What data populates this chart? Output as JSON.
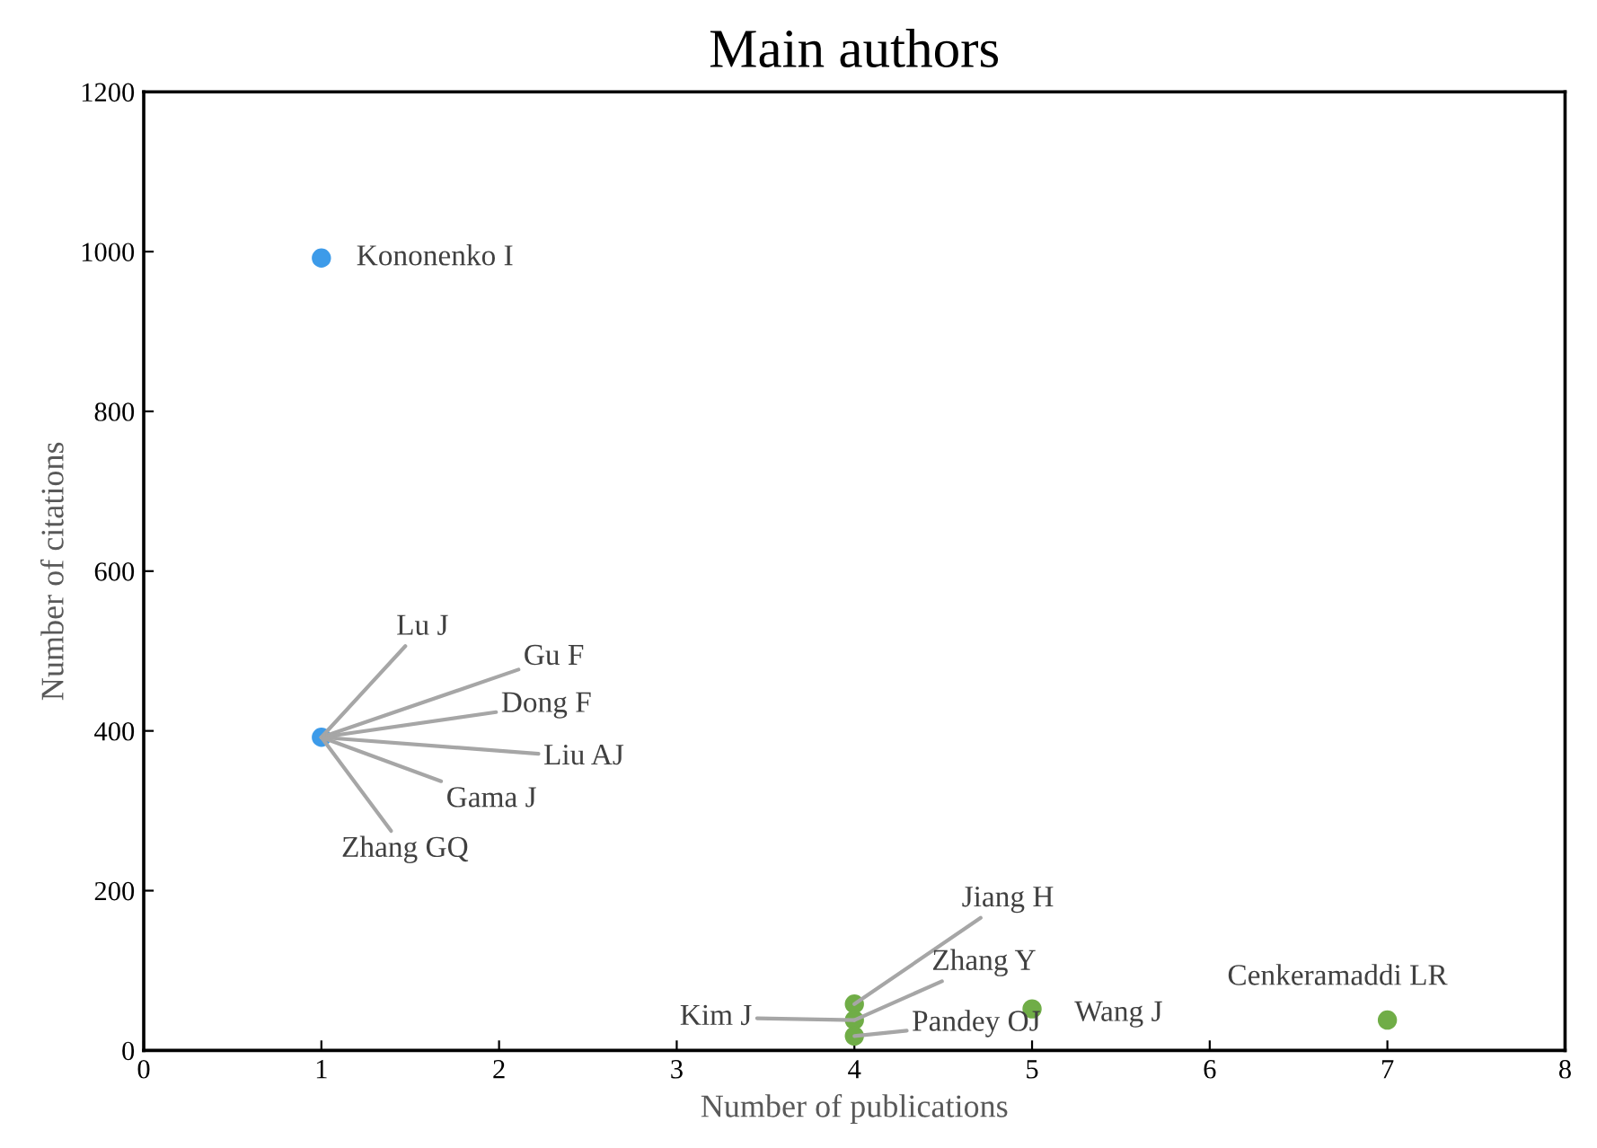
{
  "chart_data": {
    "type": "scatter",
    "title": "Main authors",
    "xlabel": "Number of publications",
    "ylabel": "Number of citations",
    "x": [
      1,
      1,
      4,
      4,
      4,
      5,
      7
    ],
    "values": [
      992,
      392,
      58,
      38,
      18,
      52,
      38
    ],
    "colors": [
      "#3d9be9",
      "#3d9be9",
      "#70ad47",
      "#70ad47",
      "#70ad47",
      "#70ad47",
      "#70ad47"
    ],
    "annotations": [
      {
        "text": "Kononenko I",
        "x": 1,
        "y": 992
      },
      {
        "text": "Lu J",
        "x": 1,
        "y": 392
      },
      {
        "text": "Gu F",
        "x": 1,
        "y": 392
      },
      {
        "text": "Dong F",
        "x": 1,
        "y": 392
      },
      {
        "text": "Liu AJ",
        "x": 1,
        "y": 392
      },
      {
        "text": "Gama J",
        "x": 1,
        "y": 392
      },
      {
        "text": "Zhang GQ",
        "x": 1,
        "y": 392
      },
      {
        "text": "Jiang H",
        "x": 4,
        "y": 58
      },
      {
        "text": "Zhang Y",
        "x": 4,
        "y": 38
      },
      {
        "text": "Kim J",
        "x": 4,
        "y": 38
      },
      {
        "text": "Pandey OJ",
        "x": 4,
        "y": 18
      },
      {
        "text": "Wang J",
        "x": 5,
        "y": 52
      },
      {
        "text": "Cenkeramaddi LR",
        "x": 7,
        "y": 38
      }
    ],
    "xlim": [
      0,
      8
    ],
    "ylim": [
      0,
      1200
    ],
    "xticks": [
      0,
      1,
      2,
      3,
      4,
      5,
      6,
      7,
      8
    ],
    "yticks": [
      0,
      200,
      400,
      600,
      800,
      1000,
      1200
    ],
    "grid": false,
    "legend": false,
    "marker": "circle"
  }
}
